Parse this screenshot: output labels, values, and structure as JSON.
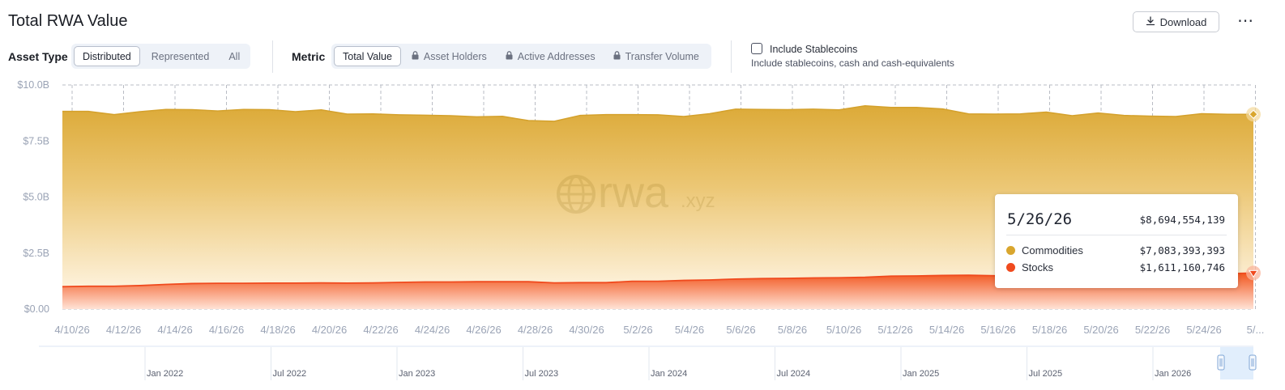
{
  "header": {
    "title": "Total RWA Value",
    "download_label": "Download",
    "more_label": "⋯"
  },
  "filters": {
    "asset_type_label": "Asset Type",
    "asset_type_options": [
      "Distributed",
      "Represented",
      "All"
    ],
    "asset_type_selected": "Distributed",
    "metric_label": "Metric",
    "metric_options": [
      {
        "label": "Total Value",
        "locked": false
      },
      {
        "label": "Asset Holders",
        "locked": true
      },
      {
        "label": "Active Addresses",
        "locked": true
      },
      {
        "label": "Transfer Volume",
        "locked": true
      }
    ],
    "metric_selected": "Total Value",
    "include_stablecoins": {
      "label": "Include Stablecoins",
      "description": "Include stablecoins, cash and cash-equivalents",
      "checked": false
    }
  },
  "watermark": {
    "text": "rwa",
    "suffix": ".xyz"
  },
  "colors": {
    "commodities": "#d9a62e",
    "stocks": "#f04a1e",
    "axis_text": "#9aa3b5",
    "grid": "#b9bcc4"
  },
  "tooltip": {
    "date": "5/26/26",
    "total": "$8,694,554,139",
    "rows": [
      {
        "name": "Commodities",
        "value": "$7,083,393,393",
        "color": "#d9a62e"
      },
      {
        "name": "Stocks",
        "value": "$1,611,160,746",
        "color": "#f04a1e"
      }
    ]
  },
  "chart_data": {
    "type": "area",
    "stacked": true,
    "title": "",
    "xlabel": "",
    "ylabel": "",
    "ylim": [
      0,
      10
    ],
    "y_unit": "B",
    "y_ticks": [
      "$0.00",
      "$2.5B",
      "$5.0B",
      "$7.5B",
      "$10.0B"
    ],
    "y_tick_values": [
      0,
      2.5,
      5,
      7.5,
      10
    ],
    "x_ticks": [
      "4/10/26",
      "4/12/26",
      "4/14/26",
      "4/16/26",
      "4/18/26",
      "4/20/26",
      "4/22/26",
      "4/24/26",
      "4/26/26",
      "4/28/26",
      "4/30/26",
      "5/2/26",
      "5/4/26",
      "5/6/26",
      "5/8/26",
      "5/10/26",
      "5/12/26",
      "5/14/26",
      "5/16/26",
      "5/18/26",
      "5/20/26",
      "5/22/26",
      "5/24/26",
      "5/..."
    ],
    "grid": true,
    "x": [
      "4/10/26",
      "4/11/26",
      "4/12/26",
      "4/13/26",
      "4/14/26",
      "4/15/26",
      "4/16/26",
      "4/17/26",
      "4/18/26",
      "4/19/26",
      "4/20/26",
      "4/21/26",
      "4/22/26",
      "4/23/26",
      "4/24/26",
      "4/25/26",
      "4/26/26",
      "4/27/26",
      "4/28/26",
      "4/29/26",
      "4/30/26",
      "5/1/26",
      "5/2/26",
      "5/3/26",
      "5/4/26",
      "5/5/26",
      "5/6/26",
      "5/7/26",
      "5/8/26",
      "5/9/26",
      "5/10/26",
      "5/11/26",
      "5/12/26",
      "5/13/26",
      "5/14/26",
      "5/15/26",
      "5/16/26",
      "5/17/26",
      "5/18/26",
      "5/19/26",
      "5/20/26",
      "5/21/26",
      "5/22/26",
      "5/23/26",
      "5/24/26",
      "5/25/26",
      "5/26/26"
    ],
    "series": [
      {
        "name": "Stocks",
        "values": [
          1.0,
          1.02,
          1.02,
          1.05,
          1.1,
          1.14,
          1.15,
          1.15,
          1.16,
          1.16,
          1.17,
          1.16,
          1.17,
          1.19,
          1.21,
          1.21,
          1.22,
          1.22,
          1.22,
          1.17,
          1.18,
          1.18,
          1.24,
          1.24,
          1.28,
          1.3,
          1.34,
          1.36,
          1.37,
          1.39,
          1.4,
          1.42,
          1.47,
          1.48,
          1.5,
          1.51,
          1.49,
          1.48,
          1.49,
          1.48,
          1.47,
          1.5,
          1.51,
          1.53,
          1.55,
          1.58,
          1.61
        ]
      },
      {
        "name": "Commodities",
        "values": [
          7.82,
          7.8,
          7.66,
          7.76,
          7.81,
          7.76,
          7.69,
          7.76,
          7.74,
          7.65,
          7.72,
          7.54,
          7.54,
          7.48,
          7.44,
          7.42,
          7.36,
          7.38,
          7.19,
          7.21,
          7.46,
          7.5,
          7.44,
          7.43,
          7.31,
          7.42,
          7.58,
          7.55,
          7.53,
          7.53,
          7.49,
          7.65,
          7.53,
          7.52,
          7.43,
          7.2,
          7.21,
          7.23,
          7.3,
          7.15,
          7.28,
          7.14,
          7.1,
          7.06,
          7.17,
          7.11,
          7.08
        ]
      }
    ],
    "total_last": 8.69,
    "navigator": {
      "labels": [
        "Jan 2022",
        "Jul 2022",
        "Jan 2023",
        "Jul 2023",
        "Jan 2024",
        "Jul 2024",
        "Jan 2025",
        "Jul 2025",
        "Jan 2026"
      ]
    }
  }
}
